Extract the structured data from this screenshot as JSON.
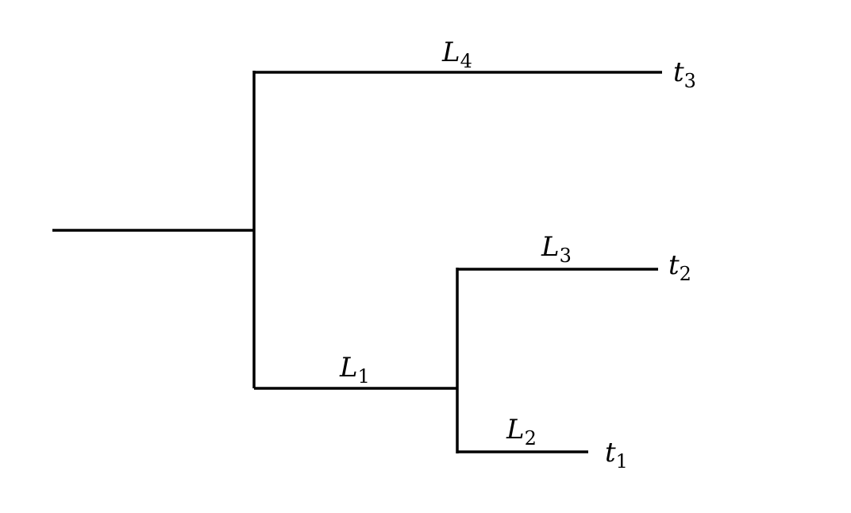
{
  "tree": {
    "branches": [
      {
        "name": "L",
        "subscript": "4"
      },
      {
        "name": "L",
        "subscript": "3"
      },
      {
        "name": "L",
        "subscript": "1"
      },
      {
        "name": "L",
        "subscript": "2"
      }
    ],
    "leaves": [
      {
        "name": "t",
        "subscript": "3"
      },
      {
        "name": "t",
        "subscript": "2"
      },
      {
        "name": "t",
        "subscript": "1"
      }
    ]
  }
}
